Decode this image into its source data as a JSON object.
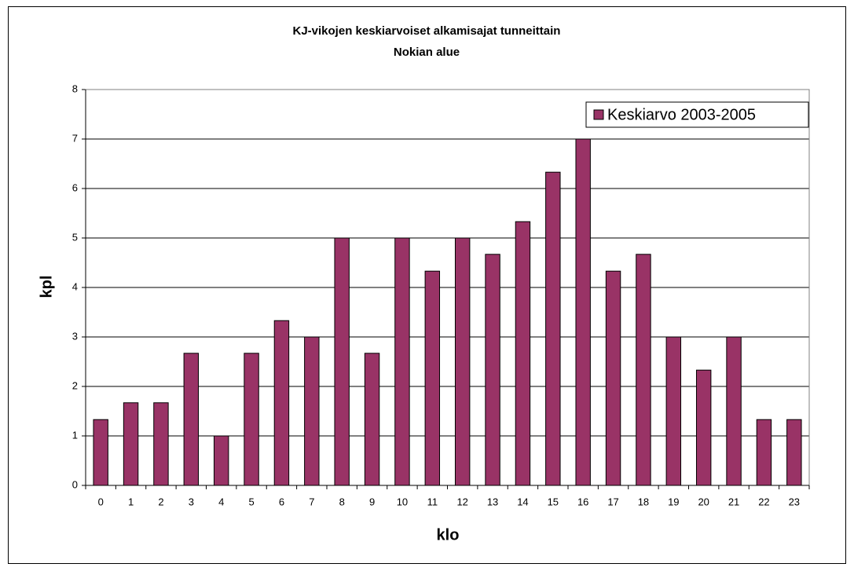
{
  "chart_data": {
    "type": "bar",
    "title": "KJ-vikojen keskiarvoiset alkamisajat tunneittain",
    "subtitle": "Nokian alue",
    "x_label": "klo",
    "y_label": "kpl",
    "categories": [
      "0",
      "1",
      "2",
      "3",
      "4",
      "5",
      "6",
      "7",
      "8",
      "9",
      "10",
      "11",
      "12",
      "13",
      "14",
      "15",
      "16",
      "17",
      "18",
      "19",
      "20",
      "21",
      "22",
      "23"
    ],
    "series": [
      {
        "name": "Keskiarvo 2003-2005",
        "color": "#993366",
        "values": [
          1.33,
          1.67,
          1.67,
          2.67,
          1,
          2.67,
          3.33,
          3,
          5,
          2.67,
          5,
          4.33,
          5,
          4.67,
          5.33,
          6.33,
          7,
          4.33,
          4.67,
          3,
          2.33,
          3,
          1.33,
          1.33
        ]
      }
    ],
    "ylim": [
      0,
      8
    ],
    "yticks": [
      0,
      1,
      2,
      3,
      4,
      5,
      6,
      7,
      8
    ],
    "grid": true,
    "legend": "top-right"
  }
}
